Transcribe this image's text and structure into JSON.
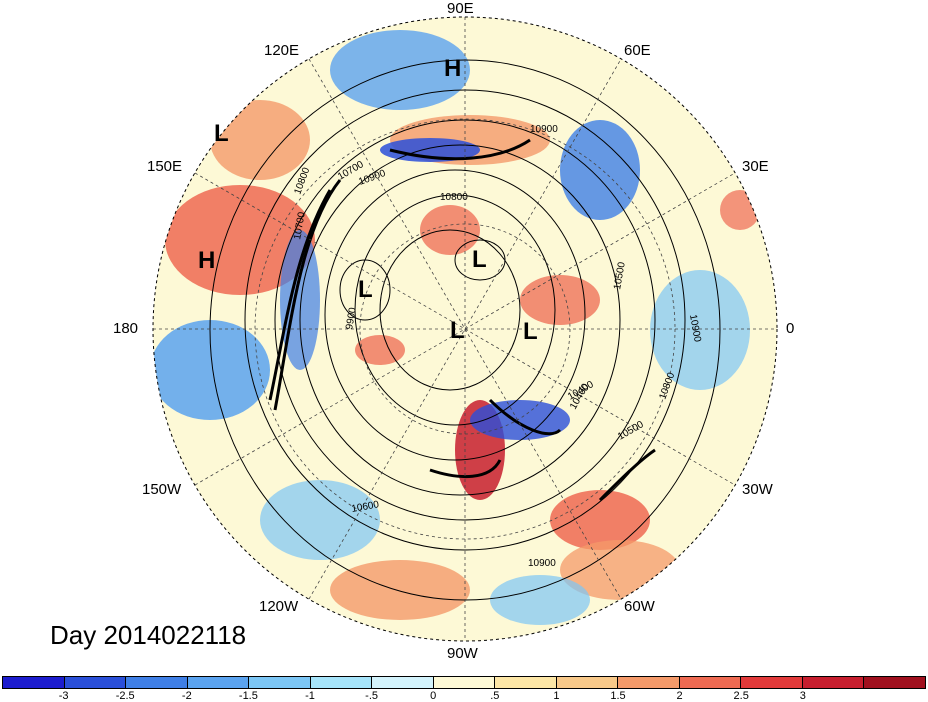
{
  "title": "Day 2014022118",
  "longitude_labels": [
    {
      "text": "90E"
    },
    {
      "text": "60E"
    },
    {
      "text": "30E"
    },
    {
      "text": "0"
    },
    {
      "text": "30W"
    },
    {
      "text": "60W"
    },
    {
      "text": "90W"
    },
    {
      "text": "120W"
    },
    {
      "text": "150W"
    },
    {
      "text": "180"
    },
    {
      "text": "150E"
    },
    {
      "text": "120E"
    }
  ],
  "pressure_centers": [
    {
      "text": "H"
    },
    {
      "text": "L"
    },
    {
      "text": "H"
    },
    {
      "text": "L"
    },
    {
      "text": "L"
    },
    {
      "text": "L"
    },
    {
      "text": "L"
    }
  ],
  "contour_labels": [
    "10900",
    "10800",
    "10700",
    "10600",
    "10500",
    "10400",
    "10900",
    "10900",
    "10800",
    "10700",
    "10900",
    "10800",
    "10400",
    "9900",
    "10500"
  ],
  "colorbar": {
    "colors": [
      "#1c1ccf",
      "#2a4fd9",
      "#3f7fe6",
      "#5ba3ef",
      "#7cc6f5",
      "#a6e4fa",
      "#d3f3fc",
      "#fdf9d6",
      "#fce6a6",
      "#f8c98a",
      "#f49a6a",
      "#ee6a52",
      "#e23a3a",
      "#c71e2e",
      "#a0101e"
    ],
    "labels": [
      "-3",
      "-2.5",
      "-2",
      "-1.5",
      "-1",
      "-.5",
      "0",
      ".5",
      "1",
      "1.5",
      "2",
      "2.5",
      "3"
    ]
  }
}
